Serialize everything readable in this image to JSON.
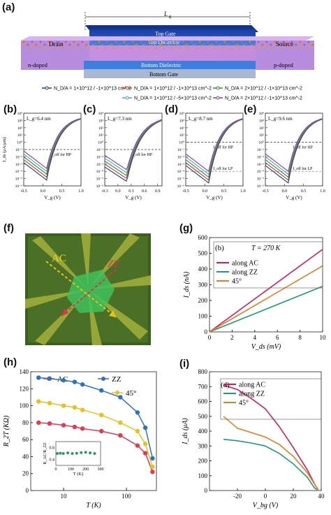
{
  "figure": {
    "panel_labels": {
      "a": "(a)",
      "b": "(b)",
      "c": "(c)",
      "d": "(d)",
      "e": "(e)",
      "f": "(f)",
      "g": "(g)",
      "h": "(h)",
      "i": "(i)"
    },
    "device": {
      "lg_label": "L",
      "lg_sub": "g",
      "top_gate": "Top Gate",
      "top_dielectric": "Top Dielectric",
      "bottom_dielectric": "Bottom Dielectric",
      "bottom_gate": "Bottom Gate",
      "drain": "Drain",
      "source": "Source",
      "n_doped": "n-doped",
      "p_doped": "p-doped"
    },
    "legend_a": [
      {
        "text": "N_D/A = 1×10^12 / -1×10^13 cm^-2",
        "color": "#1a3a8a"
      },
      {
        "text": "N_D/A = 1×10^12 / -1×10^13 cm^-2",
        "color": "#c0392b"
      },
      {
        "text": "N_D/A = 2×10^12 / -1×10^13 cm^-2",
        "color": "#2e8b2e"
      },
      {
        "text": "N_D/A = 1×10^12 / -5×10^13 cm^-2",
        "color": "#4aa3d8"
      },
      {
        "text": "N_D/A = 2×10^12 / -1×10^13 cm^-2",
        "color": "#8a3a9a"
      }
    ],
    "f_labels": {
      "ac": "AC",
      "zz": "ZZ"
    },
    "inset_g": {
      "tag": "(b)",
      "temp": "T = 270 K"
    },
    "inset_i": {
      "tag": "(d)"
    },
    "inset_h": {
      "ylabel": "R_AC/R_ZZ",
      "xlabel": "T (K)"
    }
  },
  "chart_data": [
    {
      "id": "b",
      "type": "line",
      "label": "L_g=6.4 nm",
      "xlabel": "V_g (V)",
      "ylabel": "I_ds (μA/μm)",
      "xlim": [
        -0.5,
        1.0
      ],
      "log_y": true,
      "ylim_exp": [
        -6,
        4
      ],
      "x_ticks": [
        "-0.5",
        "0.0",
        "0.5",
        "1.0"
      ],
      "annotation": "I_off for HP",
      "series": [
        {
          "color": "#1a3a8a",
          "min": -5.2
        },
        {
          "color": "#c0392b",
          "min": -4.8
        },
        {
          "color": "#2e8b2e",
          "min": -4.4
        },
        {
          "color": "#4aa3d8",
          "min": -4.0
        },
        {
          "color": "#8a3a9a",
          "min": -3.6
        }
      ]
    },
    {
      "id": "c",
      "type": "line",
      "label": "L_g=7.3 nm",
      "xlabel": "V_g (V)",
      "ylabel": "",
      "xlim": [
        -0.3,
        1.0
      ],
      "log_y": true,
      "ylim_exp": [
        -6,
        4
      ],
      "x_ticks": [
        "-0.3",
        "0.0",
        "0.3",
        "0.6",
        "0.9"
      ],
      "annotation": "I_off for HP",
      "series": [
        {
          "color": "#1a3a8a",
          "min": -5.4
        },
        {
          "color": "#c0392b",
          "min": -5.0
        },
        {
          "color": "#2e8b2e",
          "min": -4.6
        },
        {
          "color": "#4aa3d8",
          "min": -4.2
        },
        {
          "color": "#8a3a9a",
          "min": -3.8
        }
      ]
    },
    {
      "id": "d",
      "type": "line",
      "label": "L_g=8.7 nm",
      "xlabel": "V_g (V)",
      "ylabel": "",
      "xlim": [
        -0.5,
        1.0
      ],
      "log_y": true,
      "ylim_exp": [
        -6,
        4
      ],
      "x_ticks": [
        "-0.5",
        "0.0",
        "0.5",
        "1.0"
      ],
      "annotation": "I_off for HP",
      "annotation2": "I_off for LP",
      "series": [
        {
          "color": "#1a3a8a",
          "min": -5.6
        },
        {
          "color": "#c0392b",
          "min": -5.2
        },
        {
          "color": "#2e8b2e",
          "min": -4.8
        },
        {
          "color": "#4aa3d8",
          "min": -4.4
        },
        {
          "color": "#8a3a9a",
          "min": -4.0
        }
      ]
    },
    {
      "id": "e",
      "type": "line",
      "label": "L_g=9.6 nm",
      "xlabel": "V_g (V)",
      "ylabel": "",
      "xlim": [
        -0.5,
        1.0
      ],
      "log_y": true,
      "ylim_exp": [
        -6,
        4
      ],
      "x_ticks": [
        "-0.5",
        "0.0",
        "0.5",
        "1.0"
      ],
      "annotation": "I_off for HP",
      "annotation2": "I_off for LP",
      "series": [
        {
          "color": "#1a3a8a",
          "min": -5.6
        },
        {
          "color": "#c0392b",
          "min": -5.2
        },
        {
          "color": "#2e8b2e",
          "min": -4.8
        },
        {
          "color": "#4aa3d8",
          "min": -4.4
        },
        {
          "color": "#8a3a9a",
          "min": -4.0
        }
      ]
    },
    {
      "id": "g",
      "type": "line",
      "xlabel": "V_ds (mV)",
      "ylabel": "I_ds (nA)",
      "xlim": [
        0,
        10
      ],
      "ylim": [
        0,
        600
      ],
      "x_ticks": [
        0,
        2,
        4,
        6,
        8,
        10
      ],
      "y_ticks": [
        0,
        100,
        200,
        300,
        400,
        500,
        600
      ],
      "series": [
        {
          "name": "along AC",
          "color": "#d81b60",
          "x": [
            0,
            10
          ],
          "y": [
            0,
            525
          ]
        },
        {
          "name": "along ZZ",
          "color": "#1e9a7a",
          "x": [
            0,
            10
          ],
          "y": [
            0,
            290
          ]
        },
        {
          "name": "45°",
          "color": "#e67e22",
          "x": [
            0,
            10
          ],
          "y": [
            0,
            420
          ]
        }
      ]
    },
    {
      "id": "h",
      "type": "line",
      "xlabel": "T (K)",
      "ylabel": "R_2T (KΩ)",
      "log_x": true,
      "xlim": [
        3,
        300
      ],
      "ylim": [
        0,
        140
      ],
      "x_ticks": [
        "10",
        "100"
      ],
      "y_ticks": [
        0,
        20,
        40,
        60,
        80,
        100,
        120,
        140
      ],
      "series": [
        {
          "name": "AC",
          "color": "#e53950",
          "x": [
            4,
            6,
            10,
            15,
            20,
            40,
            80,
            150,
            200,
            260
          ],
          "y": [
            80,
            79,
            77,
            75,
            73,
            70,
            65,
            53,
            44,
            22
          ]
        },
        {
          "name": "ZZ",
          "color": "#2a72c4",
          "x": [
            4,
            6,
            10,
            15,
            20,
            40,
            80,
            150,
            200,
            260
          ],
          "y": [
            133,
            132,
            130,
            128,
            125,
            118,
            110,
            92,
            74,
            38
          ]
        },
        {
          "name": "45°",
          "color": "#e8c21a",
          "x": [
            4,
            6,
            10,
            15,
            20,
            40,
            80,
            150,
            200,
            260
          ],
          "y": [
            105,
            103,
            100,
            98,
            95,
            89,
            80,
            70,
            55,
            28
          ]
        }
      ],
      "inset": {
        "x_ticks": [
          "0",
          "100",
          "200",
          "300"
        ],
        "y_ticks": [
          "0.4",
          "0.8"
        ],
        "x": [
          10,
          30,
          50,
          80,
          110,
          140,
          170,
          200,
          230,
          260
        ],
        "y": [
          0.6,
          0.61,
          0.6,
          0.62,
          0.6,
          0.61,
          0.63,
          0.64,
          0.62,
          0.6
        ],
        "color": "#2a9a6a"
      }
    },
    {
      "id": "i",
      "type": "line",
      "xlabel": "V_bg (V)",
      "ylabel": "I_ds (μA)",
      "xlim": [
        -40,
        40
      ],
      "ylim": [
        0,
        800
      ],
      "x_ticks": [
        -20,
        0,
        20,
        40
      ],
      "y_ticks": [
        0,
        100,
        200,
        300,
        400,
        500,
        600,
        700,
        800
      ],
      "series": [
        {
          "name": "along AC",
          "color": "#d81b60",
          "x": [
            -30,
            -20,
            -10,
            0,
            10,
            20,
            30,
            36,
            38
          ],
          "y": [
            710,
            680,
            620,
            550,
            430,
            290,
            140,
            30,
            5
          ]
        },
        {
          "name": "along ZZ",
          "color": "#1e9a7a",
          "x": [
            -30,
            -20,
            -10,
            0,
            10,
            20,
            30,
            35,
            37
          ],
          "y": [
            345,
            335,
            320,
            300,
            250,
            180,
            90,
            20,
            5
          ]
        },
        {
          "name": "45°",
          "color": "#e67e22",
          "x": [
            -30,
            -20,
            -10,
            0,
            10,
            20,
            30,
            36,
            38
          ],
          "y": [
            500,
            420,
            390,
            360,
            310,
            230,
            120,
            30,
            5
          ]
        }
      ]
    }
  ]
}
